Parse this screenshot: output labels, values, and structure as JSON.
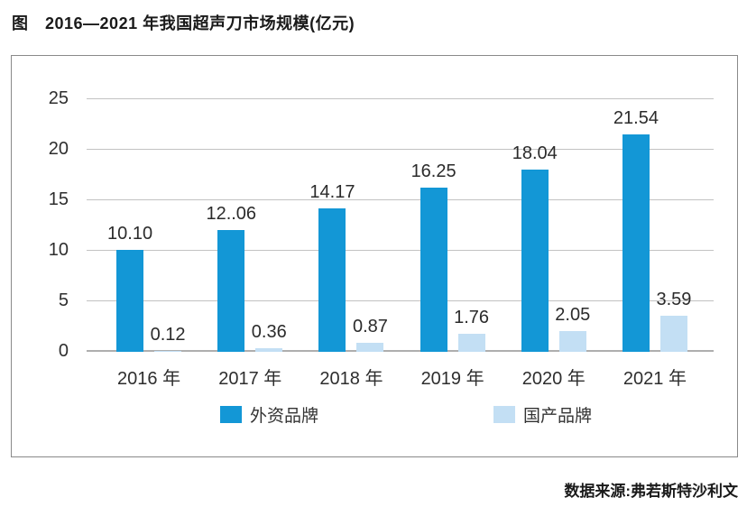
{
  "page": {
    "title": "图　2016—2021 年我国超声刀市场规模(亿元)",
    "source": "数据来源:弗若斯特沙利文"
  },
  "chart_data": {
    "type": "bar",
    "title": "2016—2021 年我国超声刀市场规模(亿元)",
    "categories": [
      "2016 年",
      "2017 年",
      "2018 年",
      "2019 年",
      "2020 年",
      "2021 年"
    ],
    "series": [
      {
        "name": "外资品牌",
        "color": "#1397D6",
        "values": [
          10.1,
          12.06,
          14.17,
          16.25,
          18.04,
          21.54
        ],
        "labels": [
          "10.10",
          "12..06",
          "14.17",
          "16.25",
          "18.04",
          "21.54"
        ]
      },
      {
        "name": "国产品牌",
        "color": "#C3DFF4",
        "values": [
          0.12,
          0.36,
          0.87,
          1.76,
          2.05,
          3.59
        ],
        "labels": [
          "0.12",
          "0.36",
          "0.87",
          "1.76",
          "2.05",
          "3.59"
        ]
      }
    ],
    "y_axis": {
      "min": 0,
      "max": 25,
      "ticks": [
        0,
        5,
        10,
        15,
        20,
        25
      ]
    },
    "grid": true,
    "legend_position": "bottom-inside",
    "ylabel": "",
    "xlabel": ""
  }
}
